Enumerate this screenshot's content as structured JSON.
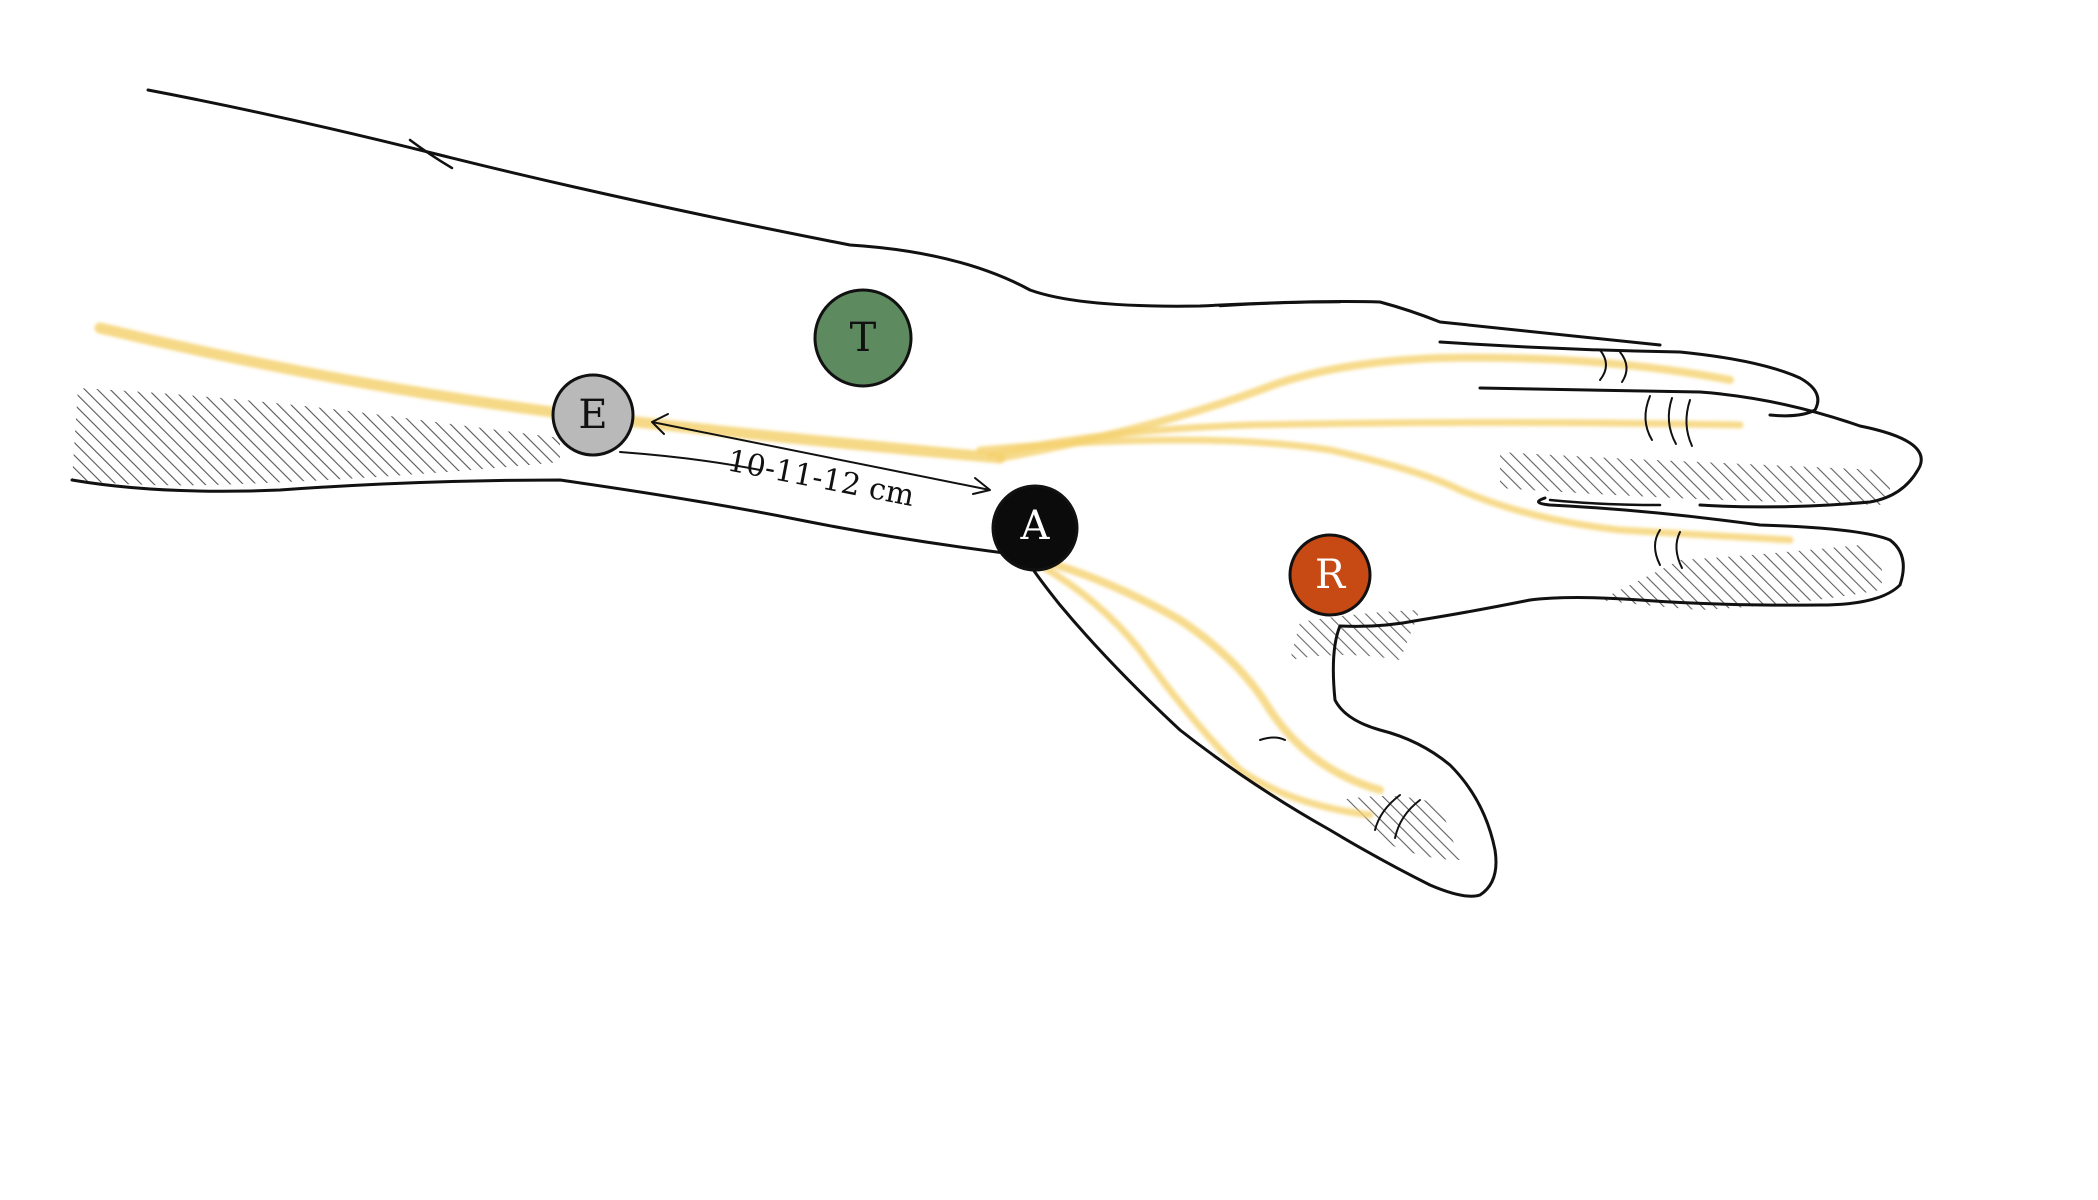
{
  "diagram": {
    "electrodes": [
      {
        "id": "E",
        "label": "E",
        "fill": "#b9b9b9",
        "text_color": "#111111"
      },
      {
        "id": "T",
        "label": "T",
        "fill": "#5d8a5e",
        "text_color": "#111111"
      },
      {
        "id": "A",
        "label": "A",
        "fill": "#0b0b0b",
        "text_color": "#ffffff"
      },
      {
        "id": "R",
        "label": "R",
        "fill": "#c74a14",
        "text_color": "#ffffff"
      }
    ],
    "distance": {
      "from": "E",
      "to": "A",
      "label": "10-11-12 cm"
    },
    "colors": {
      "nerve": "#f5d271",
      "outline": "#111111",
      "hatch": "#444444"
    }
  }
}
